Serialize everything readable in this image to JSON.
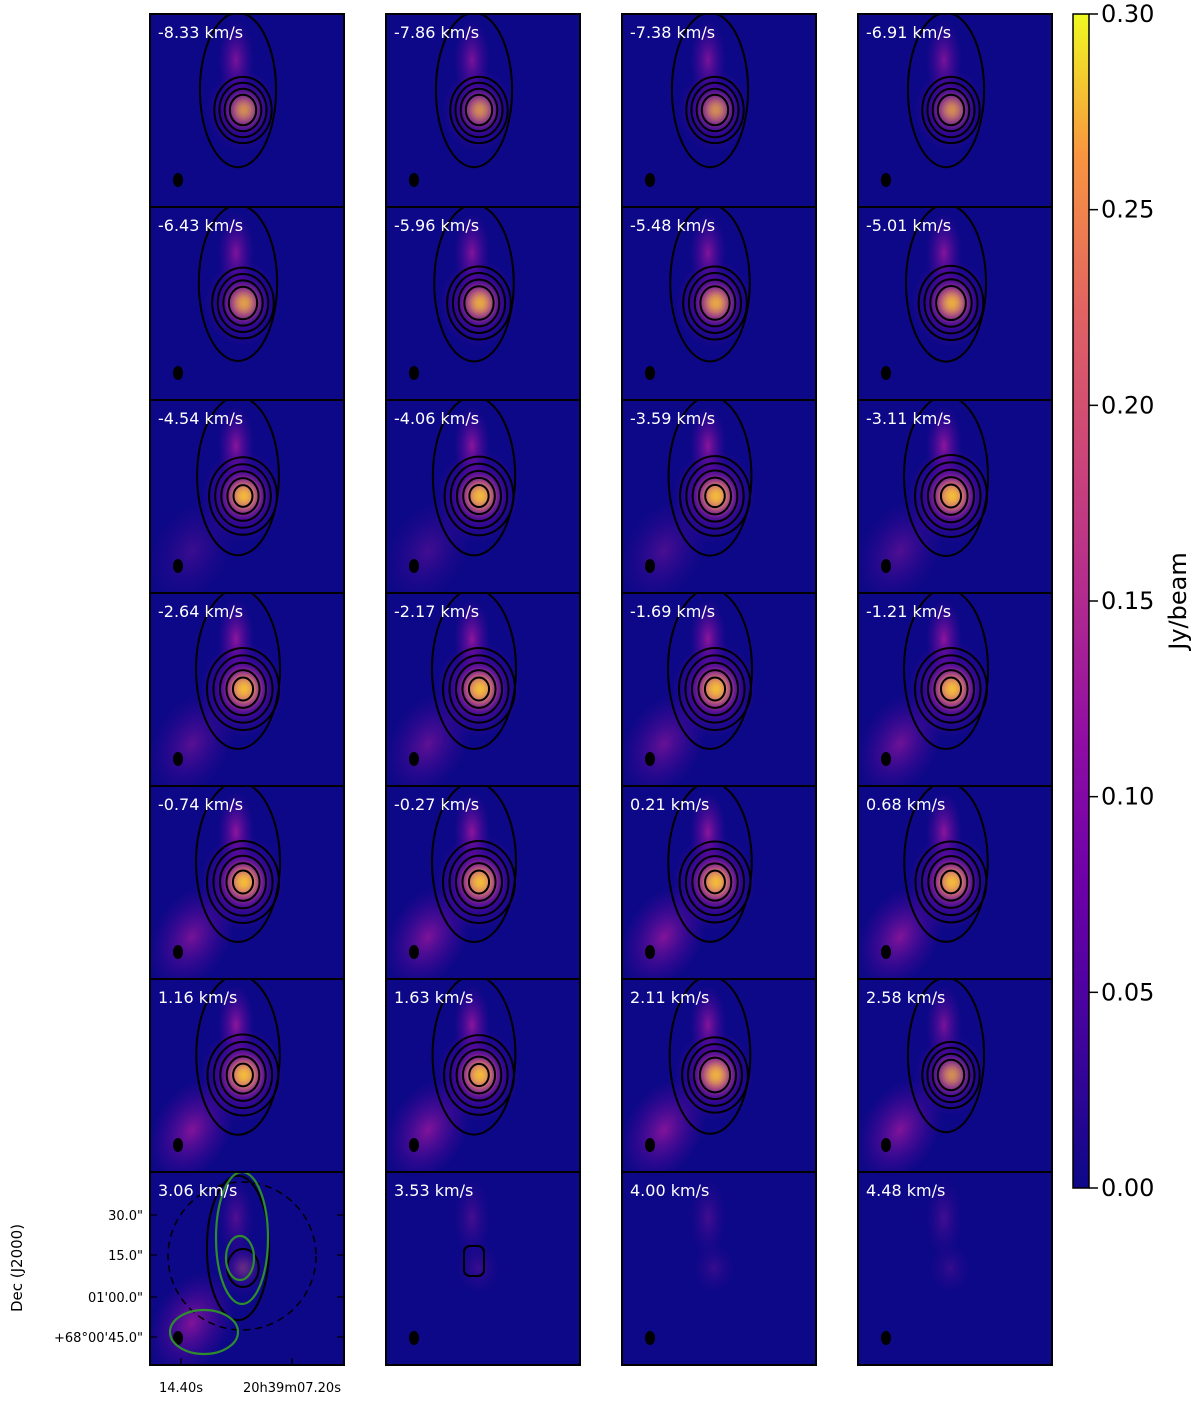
{
  "chart_data": {
    "type": "heatmap",
    "layout": "channel-map grid, 8 rows x 4 columns",
    "channels_km_s": [
      "-8.33 km/s",
      "-7.86 km/s",
      "-7.38 km/s",
      "-6.91 km/s",
      "-6.43 km/s",
      "-5.96 km/s",
      "-5.48 km/s",
      "-5.01 km/s",
      "-4.54 km/s",
      "-4.06 km/s",
      "-3.59 km/s",
      "-3.11 km/s",
      "-2.64 km/s",
      "-2.17 km/s",
      "-1.69 km/s",
      "-1.21 km/s",
      "-0.74 km/s",
      "-0.27 km/s",
      "0.21 km/s",
      "0.68 km/s",
      "1.16 km/s",
      "1.63 km/s",
      "2.11 km/s",
      "2.58 km/s",
      "3.06 km/s",
      "3.53 km/s",
      "4.00 km/s",
      "4.48 km/s"
    ],
    "velocity_values": [
      -8.33,
      -7.86,
      -7.38,
      -6.91,
      -6.43,
      -5.96,
      -5.48,
      -5.01,
      -4.54,
      -4.06,
      -3.59,
      -3.11,
      -2.64,
      -2.17,
      -1.69,
      -1.21,
      -0.74,
      -0.27,
      0.21,
      0.68,
      1.16,
      1.63,
      2.11,
      2.58,
      3.06,
      3.53,
      4.0,
      4.48
    ],
    "core_peak_relative": [
      0.72,
      0.72,
      0.72,
      0.72,
      0.8,
      0.84,
      0.84,
      0.86,
      0.92,
      0.94,
      0.96,
      1.0,
      1.0,
      1.0,
      1.0,
      1.0,
      1.0,
      1.0,
      0.98,
      0.98,
      0.98,
      0.96,
      0.88,
      0.72,
      0.22,
      0.06,
      0.03,
      0.02
    ],
    "colorbar": {
      "label": "Jy/beam",
      "range": [
        0.0,
        0.3
      ],
      "ticks": [
        "0.00",
        "0.05",
        "0.10",
        "0.15",
        "0.20",
        "0.25",
        "0.30"
      ],
      "colormap": "plasma"
    },
    "axes": {
      "ylabel": "Dec (J2000)",
      "yticks": [
        "30.0\"",
        "15.0\"",
        "01'00.0\"",
        "+68°00'45.0\""
      ],
      "xticks": [
        "14.40s",
        "20h39m07.20s"
      ]
    },
    "overlay_note": "green contours and dashed circle in the 3.06 km/s panel",
    "contour_color": "#000000",
    "overlay_color": "#2e8b2e"
  }
}
